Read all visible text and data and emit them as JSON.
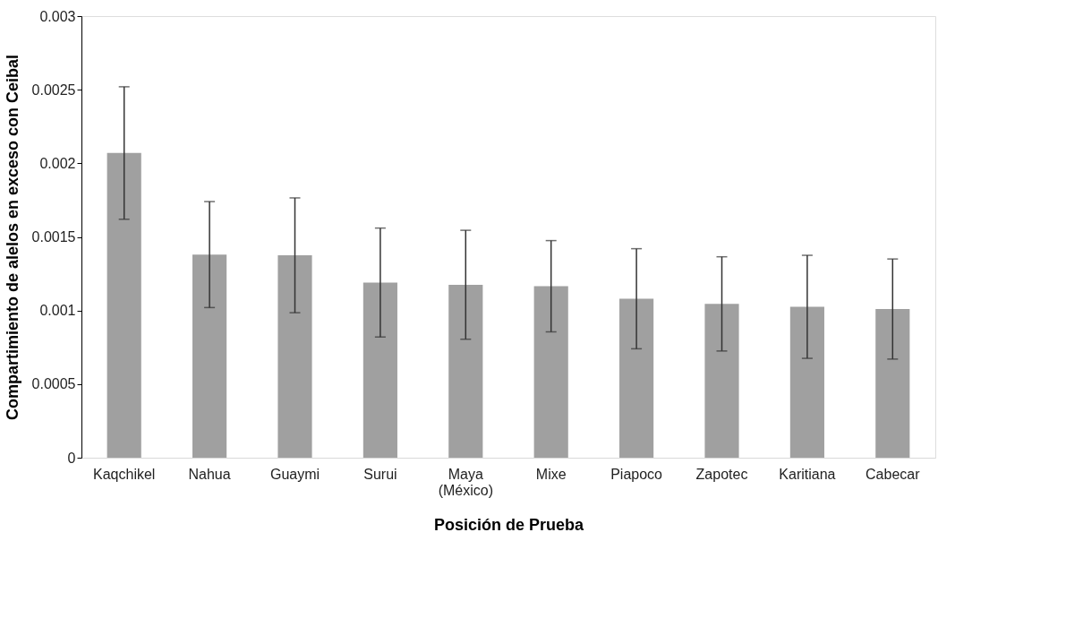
{
  "chart_data": {
    "type": "bar",
    "xlabel": "Posición de Prueba",
    "ylabel": "Compartimiento de alelos en exceso con Ceibal",
    "categories": [
      "Kaqchikel",
      "Nahua",
      "Guaymi",
      "Surui",
      "Maya\n(México)",
      "Mixe",
      "Piapoco",
      "Zapotec",
      "Karitiana",
      "Cabecar"
    ],
    "values": [
      0.00207,
      0.00138,
      0.001375,
      0.00119,
      0.001175,
      0.001165,
      0.00108,
      0.001045,
      0.001025,
      0.00101
    ],
    "errors": [
      0.00045,
      0.00036,
      0.00039,
      0.00037,
      0.00037,
      0.00031,
      0.00034,
      0.00032,
      0.00035,
      0.00034
    ],
    "color": "#a0a0a0",
    "ylim": [
      0,
      0.003
    ],
    "yticks": [
      0,
      0.0005,
      0.001,
      0.0015,
      0.002,
      0.0025,
      0.003
    ],
    "grid": false
  }
}
